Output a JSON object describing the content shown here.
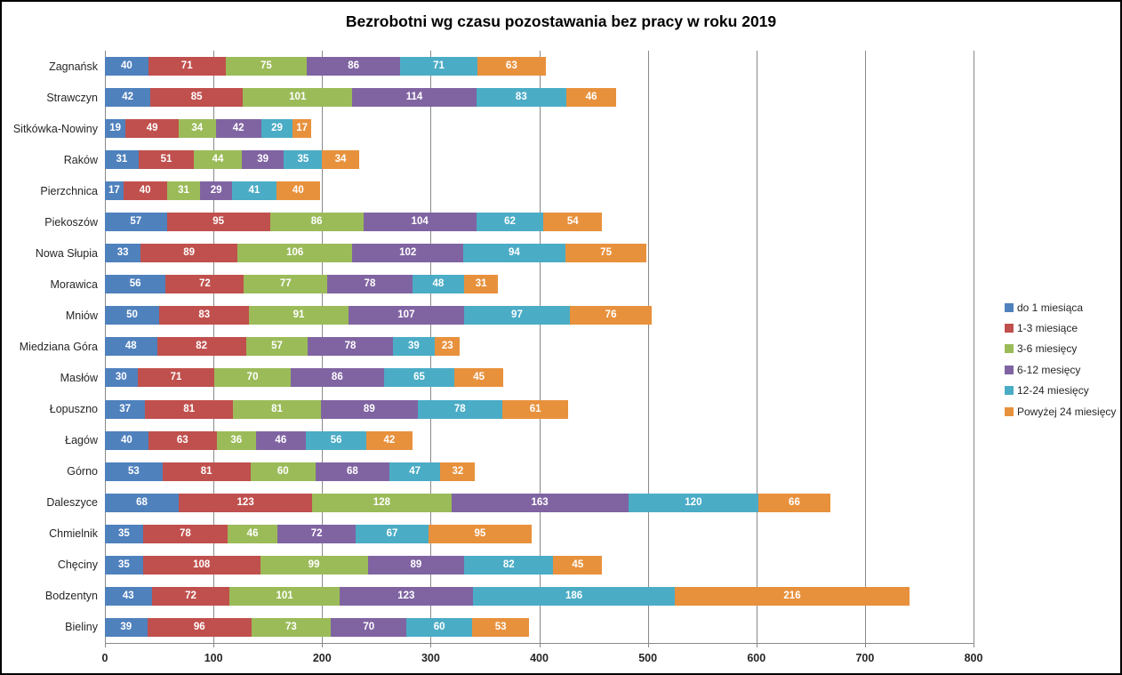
{
  "title": "Bezrobotni wg czasu pozostawania bez pracy w roku 2019",
  "chart_data": {
    "type": "bar",
    "orientation": "horizontal",
    "stacked": true,
    "title": "Bezrobotni wg czasu pozostawania bez pracy w roku 2019",
    "xlabel": "",
    "ylabel": "",
    "xlim": [
      0,
      800
    ],
    "xticks": [
      0,
      100,
      200,
      300,
      400,
      500,
      600,
      700,
      800
    ],
    "grid": true,
    "legend_position": "right",
    "value_labels": "inside-white-bold",
    "categories_top_to_bottom": [
      "Zagnańsk",
      "Strawczyn",
      "Sitkówka-Nowiny",
      "Raków",
      "Pierzchnica",
      "Piekoszów",
      "Nowa Słupia",
      "Morawica",
      "Mniów",
      "Miedziana Góra",
      "Masłów",
      "Łopuszno",
      "Łagów",
      "Górno",
      "Daleszyce",
      "Chmielnik",
      "Chęciny",
      "Bodzentyn",
      "Bieliny"
    ],
    "series": [
      {
        "name": "do 1 miesiąca",
        "color": "#4F81BD",
        "values": [
          40,
          42,
          19,
          31,
          17,
          57,
          33,
          56,
          50,
          48,
          30,
          37,
          40,
          53,
          68,
          35,
          35,
          43,
          39
        ]
      },
      {
        "name": "1-3 miesiące",
        "color": "#C0504D",
        "values": [
          71,
          85,
          49,
          51,
          40,
          95,
          89,
          72,
          83,
          82,
          71,
          81,
          63,
          81,
          123,
          78,
          108,
          72,
          96
        ]
      },
      {
        "name": "3-6 miesięcy",
        "color": "#9BBB59",
        "values": [
          75,
          101,
          34,
          44,
          31,
          86,
          106,
          77,
          91,
          57,
          70,
          81,
          36,
          60,
          128,
          46,
          99,
          101,
          73
        ]
      },
      {
        "name": "6-12 mesięcy",
        "color": "#8064A2",
        "values": [
          86,
          114,
          42,
          39,
          29,
          104,
          102,
          78,
          107,
          78,
          86,
          89,
          46,
          68,
          163,
          72,
          89,
          123,
          70
        ]
      },
      {
        "name": "12-24 miesięcy",
        "color": "#4BACC6",
        "values": [
          71,
          83,
          29,
          35,
          41,
          62,
          94,
          48,
          97,
          39,
          65,
          78,
          56,
          47,
          120,
          67,
          82,
          186,
          60
        ]
      },
      {
        "name": "Powyżej 24 miesięcy",
        "color": "#E8913D",
        "values": [
          63,
          46,
          17,
          34,
          40,
          54,
          75,
          31,
          76,
          23,
          45,
          61,
          42,
          32,
          66,
          95,
          45,
          216,
          53
        ]
      }
    ],
    "colors": {
      "gridline": "#898989",
      "axis_line": "#898989",
      "tick_label": "#262626",
      "category_label": "#262626",
      "value_label": "#FFFFFF",
      "frame_border": "#000000",
      "background": "#FFFFFF"
    }
  }
}
